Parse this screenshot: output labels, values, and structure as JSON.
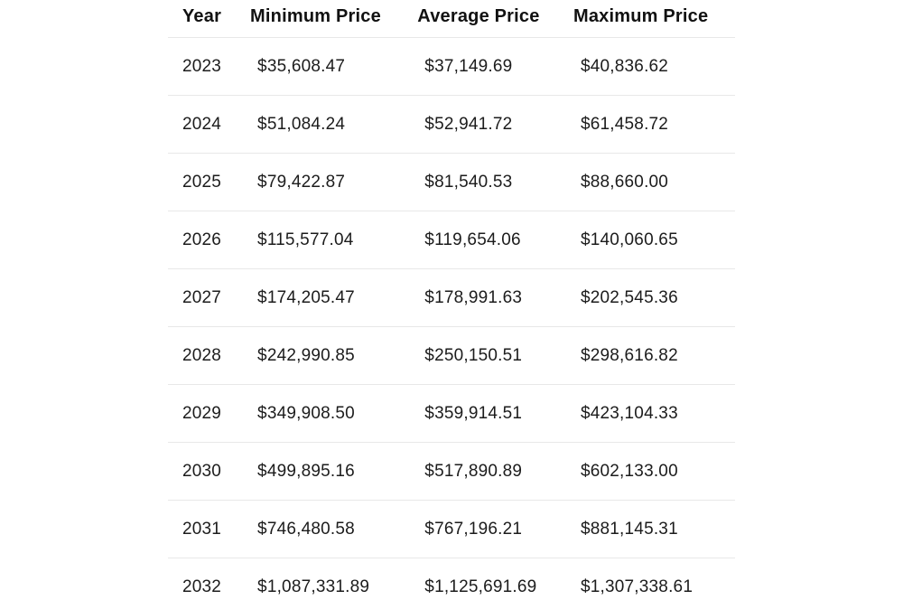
{
  "colors": {
    "text": "#1c1c1c",
    "divider": "#e8e8e8",
    "background": "#ffffff"
  },
  "chart_data": {
    "type": "table",
    "columns": [
      "Year",
      "Minimum Price",
      "Average Price",
      "Maximum Price"
    ],
    "rows": [
      [
        "2023",
        "$35,608.47",
        "$37,149.69",
        "$40,836.62"
      ],
      [
        "2024",
        "$51,084.24",
        "$52,941.72",
        "$61,458.72"
      ],
      [
        "2025",
        "$79,422.87",
        "$81,540.53",
        "$88,660.00"
      ],
      [
        "2026",
        "$115,577.04",
        "$119,654.06",
        "$140,060.65"
      ],
      [
        "2027",
        "$174,205.47",
        "$178,991.63",
        "$202,545.36"
      ],
      [
        "2028",
        "$242,990.85",
        "$250,150.51",
        "$298,616.82"
      ],
      [
        "2029",
        "$349,908.50",
        "$359,914.51",
        "$423,104.33"
      ],
      [
        "2030",
        "$499,895.16",
        "$517,890.89",
        "$602,133.00"
      ],
      [
        "2031",
        "$746,480.58",
        "$767,196.21",
        "$881,145.31"
      ],
      [
        "2032",
        "$1,087,331.89",
        "$1,125,691.69",
        "$1,307,338.61"
      ]
    ]
  }
}
